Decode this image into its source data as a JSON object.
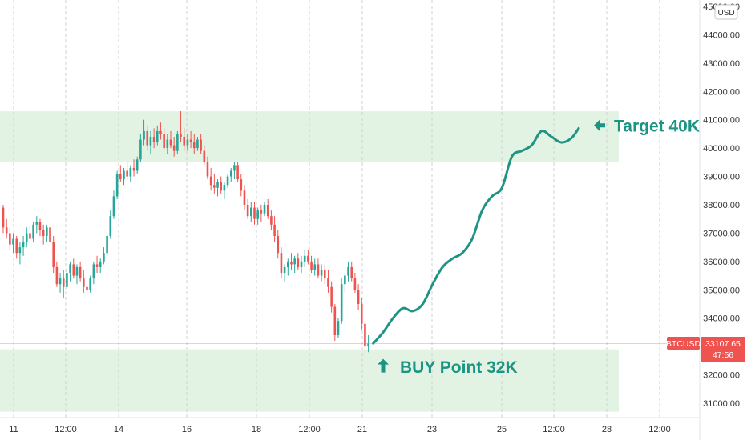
{
  "chart_data": {
    "type": "candlestick",
    "symbol": "BTCUSD",
    "currency": "USD",
    "ylim": [
      30500,
      45200
    ],
    "y_ticks": [
      31000,
      32000,
      33000,
      34000,
      35000,
      36000,
      37000,
      38000,
      39000,
      40000,
      41000,
      42000,
      43000,
      44000,
      45000
    ],
    "y_tick_labels": [
      "31000.00",
      "32000.00",
      "33000.00",
      "34000.00",
      "35000.00",
      "36000.00",
      "37000.00",
      "38000.00",
      "39000.00",
      "40000.00",
      "41000.00",
      "42000.00",
      "43000.00",
      "44000.00",
      "45000.00"
    ],
    "x_ticks": [
      {
        "t": 0,
        "label": "11"
      },
      {
        "t": 1,
        "label": "12:00"
      },
      {
        "t": 2,
        "label": "14"
      },
      {
        "t": 3,
        "label": "16"
      },
      {
        "t": 4,
        "label": "18"
      },
      {
        "t": 5,
        "label": "12:00"
      },
      {
        "t": 6,
        "label": "21"
      },
      {
        "t": 7,
        "label": "23"
      },
      {
        "t": 8,
        "label": "25"
      },
      {
        "t": 9,
        "label": "12:00"
      },
      {
        "t": 10,
        "label": "28"
      },
      {
        "t": 11,
        "label": "12:00"
      }
    ],
    "candles": [
      [
        37900,
        38000,
        37000,
        37200
      ],
      [
        37200,
        37500,
        36800,
        37000
      ],
      [
        37000,
        37200,
        36400,
        36600
      ],
      [
        36600,
        37000,
        36300,
        36800
      ],
      [
        36800,
        36900,
        36100,
        36300
      ],
      [
        36300,
        36700,
        35900,
        36500
      ],
      [
        36500,
        36900,
        36200,
        36700
      ],
      [
        36700,
        37200,
        36500,
        37000
      ],
      [
        37000,
        37300,
        36600,
        36800
      ],
      [
        36800,
        37400,
        36700,
        37300
      ],
      [
        37300,
        37600,
        37000,
        37400
      ],
      [
        37400,
        37500,
        36900,
        37100
      ],
      [
        37100,
        37300,
        36600,
        36900
      ],
      [
        36900,
        37300,
        36700,
        37200
      ],
      [
        37200,
        37400,
        36600,
        36700
      ],
      [
        36700,
        36900,
        35600,
        35800
      ],
      [
        35800,
        36000,
        35100,
        35200
      ],
      [
        35200,
        35600,
        34900,
        35400
      ],
      [
        35400,
        35700,
        34700,
        35100
      ],
      [
        35100,
        35800,
        35000,
        35600
      ],
      [
        35600,
        36000,
        35300,
        35900
      ],
      [
        35900,
        36100,
        35400,
        35500
      ],
      [
        35500,
        35900,
        35200,
        35800
      ],
      [
        35800,
        36000,
        35300,
        35400
      ],
      [
        35400,
        35700,
        34900,
        35100
      ],
      [
        35100,
        35400,
        34800,
        35000
      ],
      [
        35000,
        35500,
        34900,
        35400
      ],
      [
        35400,
        36000,
        35200,
        35900
      ],
      [
        35900,
        36200,
        35600,
        35800
      ],
      [
        35800,
        36100,
        35600,
        36000
      ],
      [
        36000,
        36500,
        35900,
        36300
      ],
      [
        36300,
        37000,
        36200,
        36900
      ],
      [
        36900,
        37800,
        36800,
        37600
      ],
      [
        37600,
        38500,
        37500,
        38300
      ],
      [
        38300,
        39200,
        38200,
        39100
      ],
      [
        39100,
        39400,
        38800,
        38900
      ],
      [
        38900,
        39300,
        38700,
        39200
      ],
      [
        39200,
        39500,
        38900,
        39000
      ],
      [
        39000,
        39400,
        38800,
        39300
      ],
      [
        39300,
        39600,
        39000,
        39200
      ],
      [
        39200,
        39700,
        39100,
        39600
      ],
      [
        39600,
        40500,
        39500,
        40300
      ],
      [
        40300,
        41000,
        40100,
        40600
      ],
      [
        40600,
        40800,
        39900,
        40100
      ],
      [
        40100,
        40600,
        39800,
        40400
      ],
      [
        40400,
        40700,
        40000,
        40200
      ],
      [
        40200,
        40800,
        40100,
        40600
      ],
      [
        40600,
        40900,
        40300,
        40500
      ],
      [
        40500,
        40700,
        39900,
        40000
      ],
      [
        40000,
        40500,
        39800,
        40300
      ],
      [
        40300,
        40600,
        40000,
        40100
      ],
      [
        40100,
        40400,
        39700,
        39900
      ],
      [
        39900,
        40600,
        39800,
        40500
      ],
      [
        40500,
        41300,
        40200,
        40400
      ],
      [
        40400,
        40700,
        39900,
        40100
      ],
      [
        40100,
        40500,
        39900,
        40300
      ],
      [
        40300,
        40600,
        40000,
        40200
      ],
      [
        40200,
        40500,
        39800,
        40000
      ],
      [
        40000,
        40400,
        39900,
        40300
      ],
      [
        40300,
        40500,
        39800,
        39900
      ],
      [
        39900,
        40100,
        39400,
        39500
      ],
      [
        39500,
        39700,
        38900,
        39000
      ],
      [
        39000,
        39300,
        38500,
        38700
      ],
      [
        38700,
        39100,
        38400,
        38600
      ],
      [
        38600,
        38900,
        38300,
        38800
      ],
      [
        38800,
        39000,
        38400,
        38500
      ],
      [
        38500,
        38800,
        38200,
        38700
      ],
      [
        38700,
        39100,
        38600,
        39000
      ],
      [
        39000,
        39300,
        38800,
        39200
      ],
      [
        39200,
        39500,
        38900,
        39400
      ],
      [
        39400,
        39500,
        38800,
        38900
      ],
      [
        38900,
        39100,
        38300,
        38500
      ],
      [
        38500,
        38700,
        37800,
        38000
      ],
      [
        38000,
        38200,
        37500,
        37600
      ],
      [
        37600,
        38100,
        37400,
        37900
      ],
      [
        37900,
        38100,
        37300,
        37500
      ],
      [
        37500,
        37900,
        37300,
        37800
      ],
      [
        37800,
        38000,
        37400,
        37700
      ],
      [
        37700,
        38100,
        37600,
        38000
      ],
      [
        38000,
        38200,
        37500,
        37600
      ],
      [
        37600,
        37800,
        37100,
        37300
      ],
      [
        37300,
        37600,
        36700,
        36900
      ],
      [
        36900,
        37100,
        36100,
        36300
      ],
      [
        36300,
        36500,
        35400,
        35600
      ],
      [
        35600,
        35900,
        35300,
        35800
      ],
      [
        35800,
        36100,
        35500,
        36000
      ],
      [
        36000,
        36300,
        35700,
        35900
      ],
      [
        35900,
        36200,
        35600,
        36100
      ],
      [
        36100,
        36300,
        35700,
        35800
      ],
      [
        35800,
        36200,
        35600,
        36000
      ],
      [
        36000,
        36400,
        35800,
        36200
      ],
      [
        36200,
        36400,
        35900,
        36000
      ],
      [
        36000,
        36200,
        35600,
        35700
      ],
      [
        35700,
        36100,
        35500,
        35900
      ],
      [
        35900,
        36100,
        35400,
        35500
      ],
      [
        35500,
        35900,
        35300,
        35700
      ],
      [
        35700,
        35900,
        35200,
        35400
      ],
      [
        35400,
        35700,
        34900,
        35100
      ],
      [
        35100,
        35300,
        34200,
        34400
      ],
      [
        34400,
        34500,
        33200,
        33400
      ],
      [
        33400,
        34000,
        33300,
        33900
      ],
      [
        33900,
        35400,
        33800,
        35200
      ],
      [
        35200,
        35600,
        34900,
        35500
      ],
      [
        35500,
        36000,
        35300,
        35800
      ],
      [
        35800,
        36000,
        35300,
        35400
      ],
      [
        35400,
        35600,
        34900,
        35000
      ],
      [
        35000,
        35200,
        34300,
        34500
      ],
      [
        34500,
        34700,
        33600,
        33800
      ],
      [
        33800,
        33900,
        32700,
        33000
      ],
      [
        33000,
        33400,
        32800,
        33108
      ]
    ],
    "projection_curve": [
      [
        0,
        33108
      ],
      [
        4,
        33500
      ],
      [
        8,
        34000
      ],
      [
        12,
        34350
      ],
      [
        16,
        34250
      ],
      [
        20,
        34500
      ],
      [
        24,
        35200
      ],
      [
        28,
        35800
      ],
      [
        32,
        36100
      ],
      [
        36,
        36300
      ],
      [
        40,
        36800
      ],
      [
        44,
        37800
      ],
      [
        48,
        38300
      ],
      [
        52,
        38600
      ],
      [
        56,
        39700
      ],
      [
        60,
        39900
      ],
      [
        64,
        40100
      ],
      [
        68,
        40600
      ],
      [
        72,
        40400
      ],
      [
        76,
        40200
      ],
      [
        80,
        40350
      ],
      [
        83,
        40700
      ]
    ],
    "zones": [
      {
        "name": "target",
        "from": 39500,
        "to": 41300
      },
      {
        "name": "buy",
        "from": 30700,
        "to": 32900
      }
    ],
    "annotations": [
      {
        "text": "Target 40K",
        "y": 40800
      },
      {
        "text": "BUY Point 32K",
        "y": 32280
      }
    ],
    "last_price": {
      "label": "BTCUSD",
      "value": "33107.65",
      "value_num": 33107.65,
      "countdown": "47:56"
    },
    "colors": {
      "up": "#26a69a",
      "down": "#ef5350",
      "zone": "#e3f3e3",
      "curve": "#1f9484",
      "annotation": "#1b9484",
      "price_tag": "#ef5350",
      "grid": "#d0d0d0"
    }
  }
}
